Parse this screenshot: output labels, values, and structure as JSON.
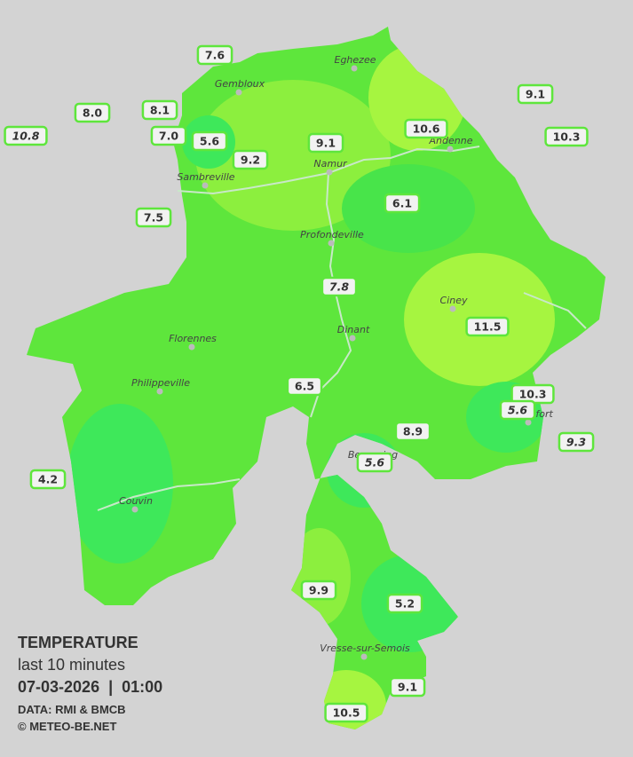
{
  "legend": {
    "title": "TEMPERATURE",
    "subtitle": "last 10 minutes",
    "datetime": "07-03-2026  |  01:00",
    "source": "DATA: RMI & BMCB",
    "credit": "© METEO-BE.NET"
  },
  "towns": [
    "Eghezee",
    "Gembloux",
    "Andenne",
    "Namur",
    "Sambreville",
    "Profondeville",
    "Ciney",
    "Dinant",
    "Florennes",
    "Philippeville",
    "Rochefort",
    "Beauraing",
    "Couvin",
    "Vresse-sur-Semois"
  ],
  "stations": [
    {
      "label": "7.6",
      "italic": false
    },
    {
      "label": "8.0",
      "italic": false
    },
    {
      "label": "10.8",
      "italic": true
    },
    {
      "label": "8.1",
      "italic": false
    },
    {
      "label": "7.0",
      "italic": false
    },
    {
      "label": "5.6",
      "italic": false
    },
    {
      "label": "9.2",
      "italic": false
    },
    {
      "label": "9.1",
      "italic": false
    },
    {
      "label": "10.6",
      "italic": false
    },
    {
      "label": "9.1",
      "italic": false
    },
    {
      "label": "10.3",
      "italic": false
    },
    {
      "label": "6.1",
      "italic": false
    },
    {
      "label": "7.5",
      "italic": false
    },
    {
      "label": "7.8",
      "italic": true
    },
    {
      "label": "11.5",
      "italic": false
    },
    {
      "label": "6.5",
      "italic": false
    },
    {
      "label": "10.3",
      "italic": false
    },
    {
      "label": "5.6",
      "italic": true
    },
    {
      "label": "8.9",
      "italic": false
    },
    {
      "label": "9.3",
      "italic": true
    },
    {
      "label": "5.6",
      "italic": true
    },
    {
      "label": "4.2",
      "italic": false
    },
    {
      "label": "9.9",
      "italic": false
    },
    {
      "label": "5.2",
      "italic": false
    },
    {
      "label": "9.1",
      "italic": false
    },
    {
      "label": "10.5",
      "italic": false
    }
  ]
}
